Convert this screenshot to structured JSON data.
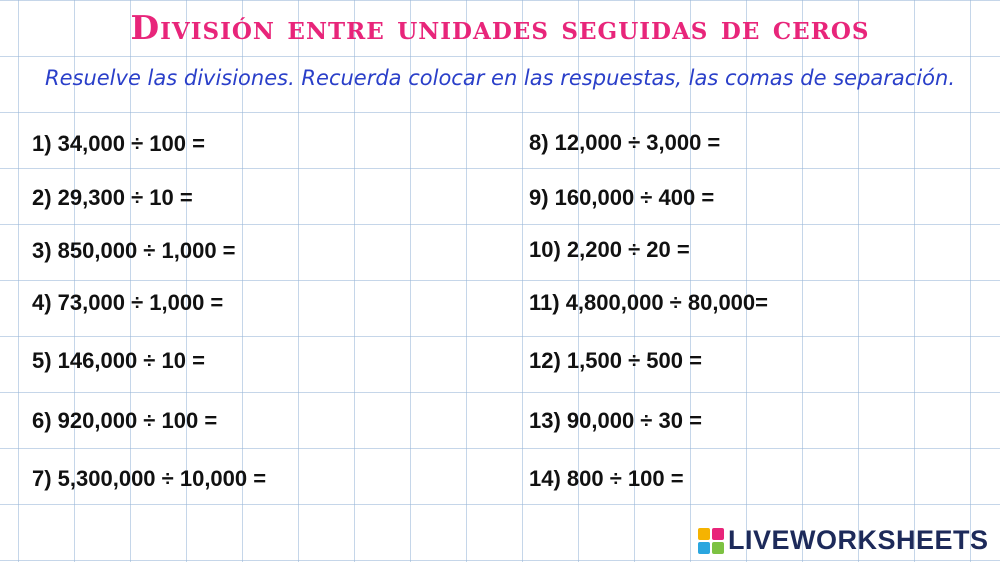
{
  "title": "División entre unidades seguidas de ceros",
  "instructions": "Resuelve las divisiones. Recuerda colocar en las respuestas, las comas de separación.",
  "problems_left": [
    "1) 34,000 ÷ 100 =",
    "2) 29,300 ÷ 10 =",
    "3) 850,000 ÷ 1,000 =",
    "4) 73,000 ÷ 1,000 =",
    "5) 146,000 ÷ 10 =",
    "6) 920,000 ÷ 100 =",
    "7) 5,300,000 ÷ 10,000 ="
  ],
  "problems_right": [
    "8) 12,000 ÷ 3,000 =",
    "9) 160,000 ÷ 400 =",
    "10) 2,200 ÷ 20 =",
    "11) 4,800,000 ÷ 80,000=",
    "12) 1,500 ÷ 500 =",
    "13) 90,000 ÷ 30 =",
    "14) 800 ÷ 100 ="
  ],
  "logo": {
    "text": "LIVEWORKSHEETS",
    "icon": "liveworksheets-logo-icon",
    "icon_colors": [
      "#f5b301",
      "#e8257a",
      "#2aa6df",
      "#7dc242"
    ]
  },
  "colors": {
    "title": "#e8257a",
    "instructions": "#2a3fc9",
    "grid": "#96b4d7",
    "logo_text": "#1d2a5a"
  }
}
